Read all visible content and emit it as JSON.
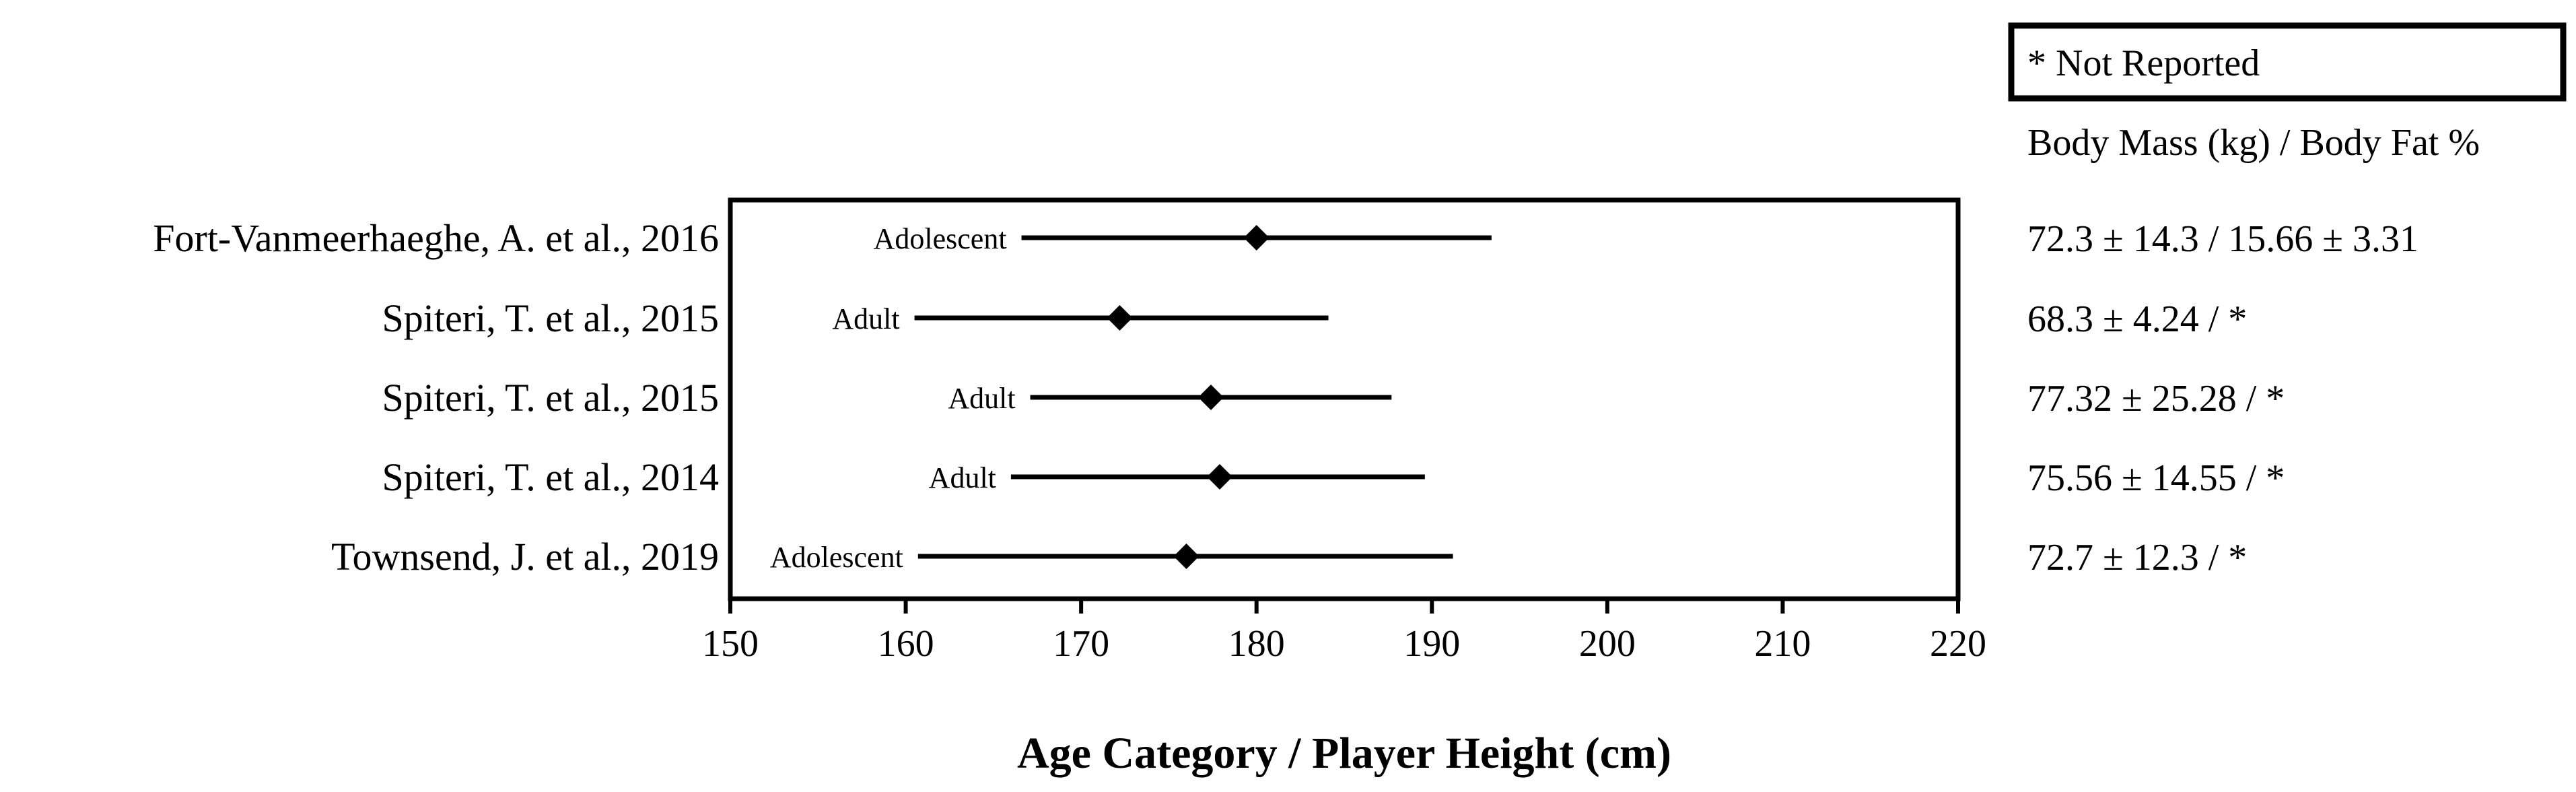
{
  "legend_note": "* Not Reported",
  "right_header": "Body Mass (kg) / Body Fat %",
  "colors": {
    "ink": "#000000",
    "background": "#ffffff"
  },
  "chart_data": {
    "type": "forest",
    "xlabel": "Age Category / Player Height (cm)",
    "xlim": [
      150,
      220
    ],
    "xticks": [
      150,
      160,
      170,
      180,
      190,
      200,
      210,
      220
    ],
    "xtick_labels": [
      "150",
      "160",
      "170",
      "180",
      "190",
      "200",
      "210",
      "220"
    ],
    "marker": "diamond",
    "rows": [
      {
        "study": "Fort-Vanmeerhaeghe, A. et al., 2016",
        "category": "Adolescent",
        "mean": 180.0,
        "low": 166.6,
        "high": 193.4,
        "body": "72.3 ± 14.3 / 15.66 ± 3.31"
      },
      {
        "study": "Spiteri, T. et al., 2015",
        "category": "Adult",
        "mean": 172.2,
        "low": 160.5,
        "high": 184.1,
        "body": "68.3 ± 4.24 / *"
      },
      {
        "study": "Spiteri, T. et al., 2015",
        "category": "Adult",
        "mean": 177.4,
        "low": 167.1,
        "high": 187.7,
        "body": "77.32 ± 25.28 / *"
      },
      {
        "study": "Spiteri, T. et al., 2014",
        "category": "Adult",
        "mean": 177.9,
        "low": 166.0,
        "high": 189.6,
        "body": "75.56 ± 14.55 / *"
      },
      {
        "study": "Townsend, J. et al., 2019",
        "category": "Adolescent",
        "mean": 176.0,
        "low": 160.7,
        "high": 191.2,
        "body": "72.7 ± 12.3 / *"
      }
    ]
  }
}
